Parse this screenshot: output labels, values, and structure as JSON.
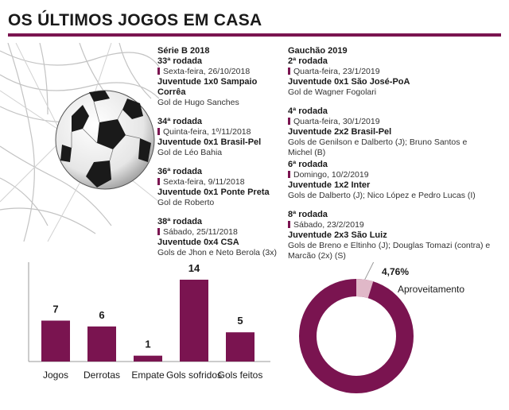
{
  "title": "OS ÚLTIMOS JOGOS EM CASA",
  "colors": {
    "accent": "#7a1450",
    "accent_light": "#e0b8c8"
  },
  "serie_b": {
    "competition": "Série B 2018",
    "games": [
      {
        "rodada": "33ª rodada",
        "date": "Sexta-feira, 26/10/2018",
        "match": "Juventude 1x0 Sampaio Corrêa",
        "goals": "Gol de Hugo Sanches"
      },
      {
        "rodada": "34ª rodada",
        "date": "Quinta-feira, 1º/11/2018",
        "match": "Juventude 0x1 Brasil-Pel",
        "goals": "Gol de Léo Bahia"
      },
      {
        "rodada": "36ª rodada",
        "date": "Sexta-feira, 9/11/2018",
        "match": "Juventude 0x1 Ponte Preta",
        "goals": "Gol de Roberto"
      },
      {
        "rodada": "38ª rodada",
        "date": "Sábado, 25/11/2018",
        "match": "Juventude 0x4 CSA",
        "goals": "Gols de Jhon e Neto Berola (3x)"
      }
    ]
  },
  "gauchao": {
    "competition": "Gauchão 2019",
    "games": [
      {
        "rodada": "2ª rodada",
        "date": "Quarta-feira, 23/1/2019",
        "match": "Juventude 0x1 São José-PoA",
        "goals": "Gol de Wagner Fogolari"
      },
      {
        "rodada": "4ª rodada",
        "date": "Quarta-feira, 30/1/2019",
        "match": "Juventude 2x2 Brasil-Pel",
        "goals": "Gols de Genilson e Dalberto (J); Bruno Santos e Michel (B)"
      },
      {
        "rodada": "6ª rodada",
        "date": "Domingo, 10/2/2019",
        "match": "Juventude 1x2 Inter",
        "goals": "Gols de Dalberto (J); Nico López e Pedro Lucas (I)"
      },
      {
        "rodada": "8ª rodada",
        "date": "Sábado, 23/2/2019",
        "match": "Juventude 2x3 São Luiz",
        "goals": "Gols de Breno e Eltinho (J); Douglas Tomazi (contra) e Marcão (2x) (S)"
      }
    ]
  },
  "chart_data": [
    {
      "type": "bar",
      "categories": [
        "Jogos",
        "Derrotas",
        "Empate",
        "Gols sofridos",
        "Gols feitos"
      ],
      "values": [
        7,
        6,
        1,
        14,
        5
      ],
      "ylim": [
        0,
        14
      ]
    },
    {
      "type": "pie",
      "labels": [
        "Aproveitamento",
        ""
      ],
      "values": [
        4.76,
        95.24
      ],
      "value_label": "4,76%",
      "donut": true
    }
  ]
}
